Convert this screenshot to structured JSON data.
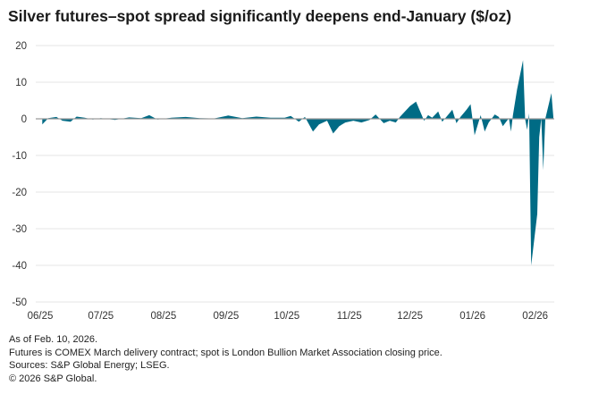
{
  "chart_data": {
    "type": "area",
    "title": "Silver futures–spot spread significantly deepens end-January ($/oz)",
    "xlabel": "",
    "ylabel": "",
    "ylim": [
      -50,
      20
    ],
    "yticks": [
      20,
      10,
      0,
      -10,
      -20,
      -30,
      -40,
      -50
    ],
    "xticks": [
      {
        "label": "06/25",
        "date": "2025-06-01"
      },
      {
        "label": "07/25",
        "date": "2025-07-01"
      },
      {
        "label": "08/25",
        "date": "2025-08-01"
      },
      {
        "label": "09/25",
        "date": "2025-09-01"
      },
      {
        "label": "10/25",
        "date": "2025-10-01"
      },
      {
        "label": "11/25",
        "date": "2025-11-01"
      },
      {
        "label": "12/25",
        "date": "2025-12-01"
      },
      {
        "label": "01/26",
        "date": "2026-01-01"
      },
      {
        "label": "02/26",
        "date": "2026-02-01"
      }
    ],
    "xlim": [
      "2025-06-01",
      "2026-02-10"
    ],
    "grid": true,
    "color": "#006b85",
    "points": [
      [
        "2025-06-02",
        -1.5
      ],
      [
        "2025-06-05",
        0.2
      ],
      [
        "2025-06-09",
        0.5
      ],
      [
        "2025-06-12",
        -0.5
      ],
      [
        "2025-06-16",
        -0.8
      ],
      [
        "2025-06-19",
        0.6
      ],
      [
        "2025-06-23",
        0.3
      ],
      [
        "2025-06-27",
        -0.2
      ],
      [
        "2025-07-01",
        0.2
      ],
      [
        "2025-07-08",
        -0.3
      ],
      [
        "2025-07-15",
        0.4
      ],
      [
        "2025-07-21",
        0.2
      ],
      [
        "2025-07-25",
        1.0
      ],
      [
        "2025-07-29",
        -0.2
      ],
      [
        "2025-08-05",
        0.3
      ],
      [
        "2025-08-12",
        0.5
      ],
      [
        "2025-08-19",
        0.2
      ],
      [
        "2025-08-26",
        0.1
      ],
      [
        "2025-09-02",
        0.9
      ],
      [
        "2025-09-09",
        0.2
      ],
      [
        "2025-09-16",
        0.6
      ],
      [
        "2025-09-23",
        0.3
      ],
      [
        "2025-09-30",
        0.3
      ],
      [
        "2025-10-03",
        0.8
      ],
      [
        "2025-10-07",
        -0.8
      ],
      [
        "2025-10-10",
        0.5
      ],
      [
        "2025-10-14",
        -3.5
      ],
      [
        "2025-10-17",
        -1.5
      ],
      [
        "2025-10-21",
        -0.5
      ],
      [
        "2025-10-24",
        -4
      ],
      [
        "2025-10-27",
        -2
      ],
      [
        "2025-10-30",
        -1
      ],
      [
        "2025-11-03",
        -0.5
      ],
      [
        "2025-11-07",
        -1
      ],
      [
        "2025-11-11",
        -0.3
      ],
      [
        "2025-11-14",
        1.2
      ],
      [
        "2025-11-18",
        -1.2
      ],
      [
        "2025-11-21",
        -0.5
      ],
      [
        "2025-11-24",
        -1
      ],
      [
        "2025-11-26",
        0.5
      ],
      [
        "2025-12-01",
        3.5
      ],
      [
        "2025-12-04",
        4.7
      ],
      [
        "2025-12-08",
        -0.5
      ],
      [
        "2025-12-10",
        1
      ],
      [
        "2025-12-12",
        0.3
      ],
      [
        "2025-12-15",
        2
      ],
      [
        "2025-12-17",
        -0.8
      ],
      [
        "2025-12-19",
        0.5
      ],
      [
        "2025-12-22",
        2.5
      ],
      [
        "2025-12-24",
        -1.2
      ],
      [
        "2025-12-26",
        0.5
      ],
      [
        "2025-12-29",
        2.5
      ],
      [
        "2025-12-31",
        4
      ],
      [
        "2026-01-02",
        -4.5
      ],
      [
        "2026-01-05",
        1
      ],
      [
        "2026-01-07",
        -3.5
      ],
      [
        "2026-01-09",
        -1
      ],
      [
        "2026-01-12",
        1.2
      ],
      [
        "2026-01-14",
        0.5
      ],
      [
        "2026-01-16",
        -2
      ],
      [
        "2026-01-19",
        0.2
      ],
      [
        "2026-01-20",
        -3.5
      ],
      [
        "2026-01-21",
        1
      ],
      [
        "2026-01-23",
        8
      ],
      [
        "2026-01-26",
        16
      ],
      [
        "2026-01-27",
        0
      ],
      [
        "2026-01-28",
        -3
      ],
      [
        "2026-01-29",
        1.5
      ],
      [
        "2026-01-30",
        -40
      ],
      [
        "2026-02-02",
        -26
      ],
      [
        "2026-02-03",
        -5
      ],
      [
        "2026-02-04",
        0.2
      ],
      [
        "2026-02-05",
        -14
      ],
      [
        "2026-02-06",
        0
      ],
      [
        "2026-02-09",
        7
      ],
      [
        "2026-02-10",
        0.5
      ]
    ]
  },
  "notes": {
    "as_of": "As of Feb. 10, 2026.",
    "definition": "Futures is COMEX March delivery contract; spot is London Bullion Market Association closing price.",
    "sources": "Sources: S&P Global Energy; LSEG.",
    "copyright": "© 2026 S&P Global."
  }
}
